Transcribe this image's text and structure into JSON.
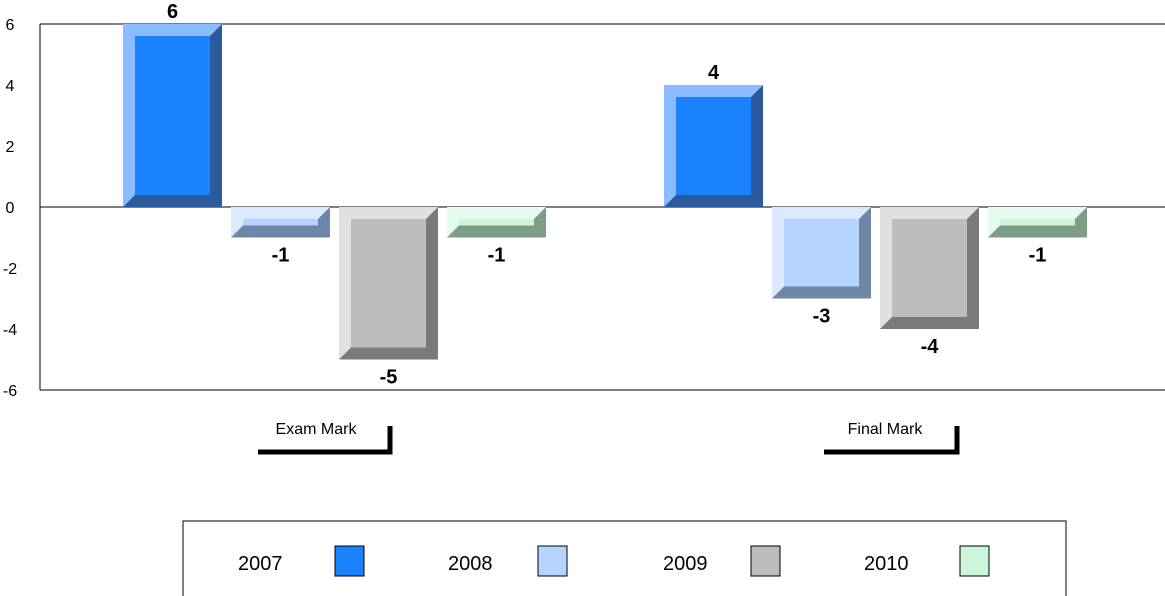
{
  "chart_data": {
    "type": "bar",
    "categories": [
      "Exam Mark",
      "Final Mark"
    ],
    "series": [
      {
        "name": "2007",
        "values": [
          6,
          4
        ],
        "color": "#1a82ff",
        "light": "#8cbcff",
        "dark": "#2b5a9e"
      },
      {
        "name": "2008",
        "values": [
          -1,
          -3
        ],
        "color": "#b5d4ff",
        "light": "#dceaff",
        "dark": "#6f86a8"
      },
      {
        "name": "2009",
        "values": [
          -5,
          -4
        ],
        "color": "#bdbdbd",
        "light": "#e0e0e0",
        "dark": "#7a7a7a"
      },
      {
        "name": "2010",
        "values": [
          -1,
          -1
        ],
        "color": "#ccf5dc",
        "light": "#e8fbef",
        "dark": "#7f9c88"
      }
    ],
    "yticks": [
      6,
      4,
      2,
      0,
      -2,
      -4,
      -6
    ],
    "ylim": [
      -6,
      6
    ],
    "title": "",
    "xlabel": "",
    "ylabel": "",
    "legend_position": "bottom"
  }
}
